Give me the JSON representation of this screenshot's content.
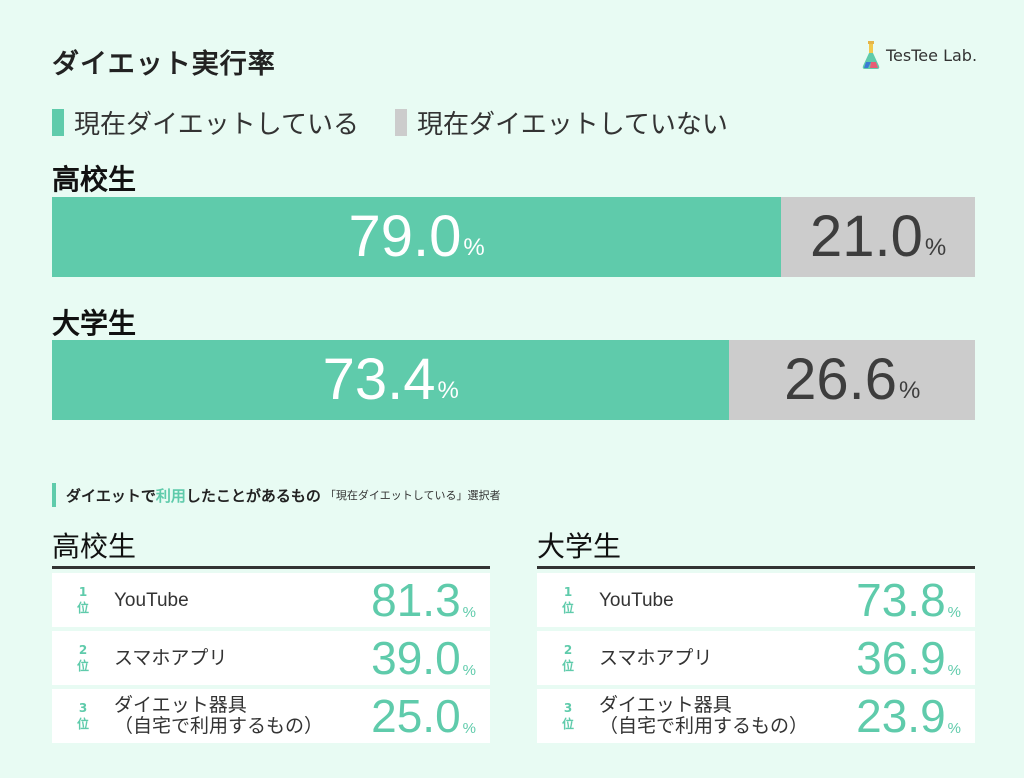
{
  "title": "ダイエット実行率",
  "brand": {
    "name": "TesTee Lab.",
    "icon": "flask-icon"
  },
  "colors": {
    "accent": "#5fcbab",
    "gray": "#cccccc",
    "background": "#e8fbf3"
  },
  "legend": [
    {
      "label": "現在ダイエットしている",
      "color": "#5fcbab"
    },
    {
      "label": "現在ダイエットしていない",
      "color": "#cccccc"
    }
  ],
  "chart_data": [
    {
      "type": "bar",
      "orientation": "horizontal-stacked-100",
      "categories": [
        "高校生",
        "大学生"
      ],
      "series": [
        {
          "name": "現在ダイエットしている",
          "values": [
            79.0,
            73.4
          ]
        },
        {
          "name": "現在ダイエットしていない",
          "values": [
            21.0,
            26.6
          ]
        }
      ],
      "display": {
        "high": {
          "a": "79.0",
          "b": "21.0"
        },
        "univ": {
          "a": "73.4",
          "b": "26.6"
        }
      },
      "unit": "%"
    },
    {
      "type": "table",
      "title": "ダイエットで利用したことがあるもの「現在ダイエットしている」選択者",
      "tables": [
        {
          "label": "高校生",
          "rows": [
            {
              "rank": "1",
              "rank_suffix": "位",
              "item": "YouTube",
              "item_l2": "",
              "value": "81.3"
            },
            {
              "rank": "2",
              "rank_suffix": "位",
              "item": "スマホアプリ",
              "item_l2": "",
              "value": "39.0"
            },
            {
              "rank": "3",
              "rank_suffix": "位",
              "item": "ダイエット器具",
              "item_l2": "（自宅で利用するもの）",
              "value": "25.0"
            }
          ]
        },
        {
          "label": "大学生",
          "rows": [
            {
              "rank": "1",
              "rank_suffix": "位",
              "item": "YouTube",
              "item_l2": "",
              "value": "73.8"
            },
            {
              "rank": "2",
              "rank_suffix": "位",
              "item": "スマホアプリ",
              "item_l2": "",
              "value": "36.9"
            },
            {
              "rank": "3",
              "rank_suffix": "位",
              "item": "ダイエット器具",
              "item_l2": "（自宅で利用するもの）",
              "value": "23.9"
            }
          ]
        }
      ],
      "unit": "%"
    }
  ],
  "section": {
    "title_a": "ダイエットで",
    "title_hl": "利用",
    "title_b": "したことがあるもの",
    "subtitle": "「現在ダイエットしている」選択者"
  },
  "pct": "%"
}
